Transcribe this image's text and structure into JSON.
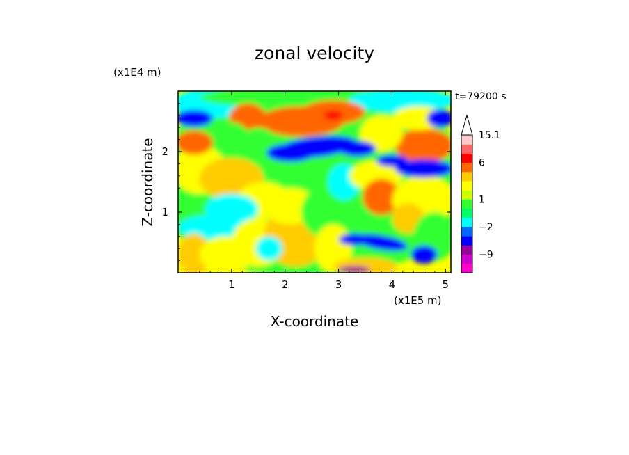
{
  "chart_data": {
    "type": "heatmap",
    "title": "zonal velocity",
    "xlabel": "X-coordinate",
    "ylabel": "Z-coordinate",
    "x_unit": "(x1E5 m)",
    "y_unit": "(x1E4 m)",
    "time_label": "t=79200 s",
    "xlim": [
      0,
      5.1
    ],
    "ylim": [
      0,
      3.0
    ],
    "x_ticks": [
      "1",
      "2",
      "3",
      "4",
      "5"
    ],
    "x_tick_values": [
      1,
      2,
      3,
      4,
      5
    ],
    "y_ticks": [
      "1",
      "2"
    ],
    "y_tick_values": [
      1,
      2
    ],
    "colorbar": {
      "labels": [
        "15.1",
        "6",
        "1",
        "−2",
        "−9"
      ],
      "label_values": [
        15.1,
        6,
        1,
        -2,
        -9
      ],
      "levels": [
        -15,
        -12,
        -9,
        -6,
        -4,
        -2,
        -1,
        0,
        1,
        2,
        3,
        4,
        6,
        9,
        12,
        15.1
      ],
      "colors": [
        "#ff00cc",
        "#cc00cc",
        "#990099",
        "#0000ff",
        "#0066ff",
        "#00ffff",
        "#00ff66",
        "#33ff33",
        "#ccff00",
        "#ffff00",
        "#ffcc00",
        "#ff6600",
        "#ff0000",
        "#ff6666",
        "#ffcccc"
      ],
      "extend": "max"
    },
    "grid": false,
    "color_bands": [
      {
        "z": 2.55,
        "x_from": 0.0,
        "x_to": 0.6,
        "level": "#0000ff"
      },
      {
        "z": 2.05,
        "x_from": 1.7,
        "x_to": 3.5,
        "level": "#0000ff"
      },
      {
        "z": 2.5,
        "x_from": 1.5,
        "x_to": 3.2,
        "level": "#ff6600"
      },
      {
        "z": 2.1,
        "x_from": 4.1,
        "x_to": 5.1,
        "level": "#ff6600"
      },
      {
        "z": 1.7,
        "x_from": 4.2,
        "x_to": 5.1,
        "level": "#0000ff"
      },
      {
        "z": 0.5,
        "x_from": 3.4,
        "x_to": 4.3,
        "level": "#0000ff"
      },
      {
        "z": 0.9,
        "x_from": 3.5,
        "x_to": 4.2,
        "level": "#ff6600"
      }
    ]
  }
}
